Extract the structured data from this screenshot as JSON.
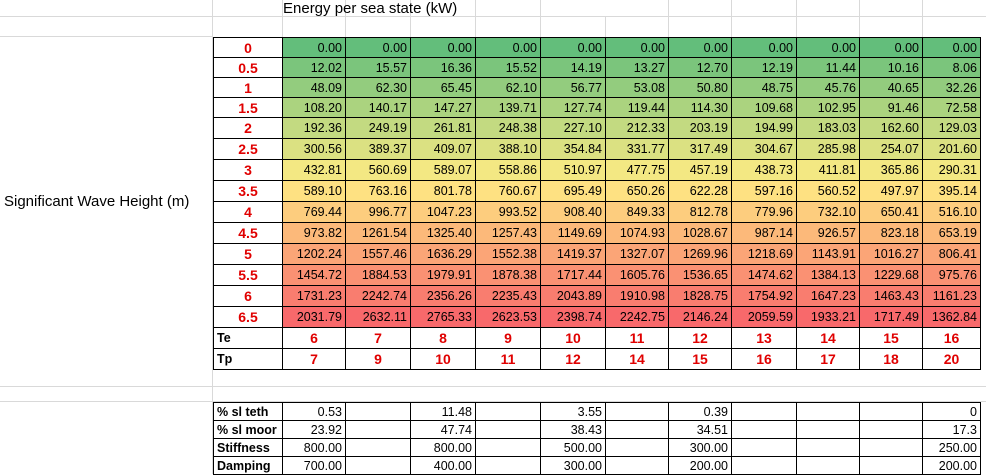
{
  "title": "Energy per sea state (kW)",
  "y_axis_label": "Significant Wave Height (m)",
  "wave_heights": [
    "0",
    "0.5",
    "1",
    "1.5",
    "2",
    "2.5",
    "3",
    "3.5",
    "4",
    "4.5",
    "5",
    "5.5",
    "6",
    "6.5"
  ],
  "energy": [
    [
      "0.00",
      "0.00",
      "0.00",
      "0.00",
      "0.00",
      "0.00",
      "0.00",
      "0.00",
      "0.00",
      "0.00",
      "0.00"
    ],
    [
      "12.02",
      "15.57",
      "16.36",
      "15.52",
      "14.19",
      "13.27",
      "12.70",
      "12.19",
      "11.44",
      "10.16",
      "8.06"
    ],
    [
      "48.09",
      "62.30",
      "65.45",
      "62.10",
      "56.77",
      "53.08",
      "50.80",
      "48.75",
      "45.76",
      "40.65",
      "32.26"
    ],
    [
      "108.20",
      "140.17",
      "147.27",
      "139.71",
      "127.74",
      "119.44",
      "114.30",
      "109.68",
      "102.95",
      "91.46",
      "72.58"
    ],
    [
      "192.36",
      "249.19",
      "261.81",
      "248.38",
      "227.10",
      "212.33",
      "203.19",
      "194.99",
      "183.03",
      "162.60",
      "129.03"
    ],
    [
      "300.56",
      "389.37",
      "409.07",
      "388.10",
      "354.84",
      "331.77",
      "317.49",
      "304.67",
      "285.98",
      "254.07",
      "201.60"
    ],
    [
      "432.81",
      "560.69",
      "589.07",
      "558.86",
      "510.97",
      "477.75",
      "457.19",
      "438.73",
      "411.81",
      "365.86",
      "290.31"
    ],
    [
      "589.10",
      "763.16",
      "801.78",
      "760.67",
      "695.49",
      "650.26",
      "622.28",
      "597.16",
      "560.52",
      "497.97",
      "395.14"
    ],
    [
      "769.44",
      "996.77",
      "1047.23",
      "993.52",
      "908.40",
      "849.33",
      "812.78",
      "779.96",
      "732.10",
      "650.41",
      "516.10"
    ],
    [
      "973.82",
      "1261.54",
      "1325.40",
      "1257.43",
      "1149.69",
      "1074.93",
      "1028.67",
      "987.14",
      "926.57",
      "823.18",
      "653.19"
    ],
    [
      "1202.24",
      "1557.46",
      "1636.29",
      "1552.38",
      "1419.37",
      "1327.07",
      "1269.96",
      "1218.69",
      "1143.91",
      "1016.27",
      "806.41"
    ],
    [
      "1454.72",
      "1884.53",
      "1979.91",
      "1878.38",
      "1717.44",
      "1605.76",
      "1536.65",
      "1474.62",
      "1384.13",
      "1229.68",
      "975.76"
    ],
    [
      "1731.23",
      "2242.74",
      "2356.26",
      "2235.43",
      "2043.89",
      "1910.98",
      "1828.75",
      "1754.92",
      "1647.23",
      "1463.43",
      "1161.23"
    ],
    [
      "2031.79",
      "2632.11",
      "2765.33",
      "2623.53",
      "2398.74",
      "2242.75",
      "2146.24",
      "2059.59",
      "1933.21",
      "1717.49",
      "1362.84"
    ]
  ],
  "te_label": "Te",
  "te_values": [
    "6",
    "7",
    "8",
    "9",
    "10",
    "11",
    "12",
    "13",
    "14",
    "15",
    "16"
  ],
  "tp_label": "Tp",
  "tp_values": [
    "7",
    "9",
    "10",
    "11",
    "12",
    "14",
    "15",
    "16",
    "17",
    "18",
    "20"
  ],
  "bottom_rows": [
    {
      "label": "% sl teth",
      "values": [
        "0.53",
        "",
        "11.48",
        "",
        "3.55",
        "",
        "0.39",
        "",
        "",
        "",
        "0"
      ]
    },
    {
      "label": "% sl moor",
      "values": [
        "23.92",
        "",
        "47.74",
        "",
        "38.43",
        "",
        "34.51",
        "",
        "",
        "",
        "17.3"
      ]
    },
    {
      "label": "Stiffness",
      "values": [
        "800.00",
        "",
        "800.00",
        "",
        "500.00",
        "",
        "300.00",
        "",
        "",
        "",
        "250.00"
      ]
    },
    {
      "label": "Damping",
      "values": [
        "700.00",
        "",
        "400.00",
        "",
        "300.00",
        "",
        "200.00",
        "",
        "",
        "",
        "200.00"
      ]
    }
  ]
}
